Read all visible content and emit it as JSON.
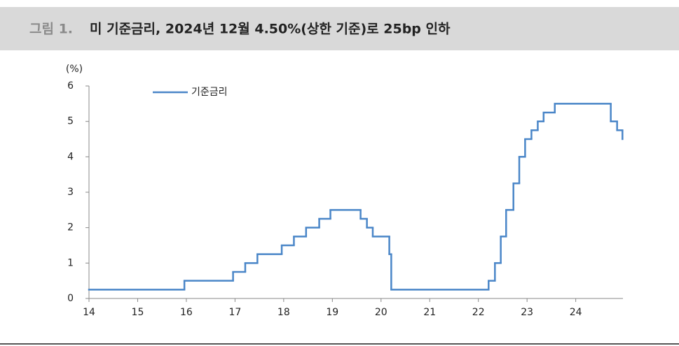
{
  "chart_data": {
    "type": "step",
    "figure_label": "그림 1.",
    "title": "미 기준금리, 2024년 12월 4.50%(상한 기준)로 25bp 인하",
    "y_label": "(%)",
    "series": [
      {
        "name": "기준금리",
        "color": "#4a86c8",
        "x": [
          14,
          15.96,
          16.96,
          17.21,
          17.46,
          17.96,
          18.21,
          18.46,
          18.73,
          18.96,
          19.58,
          19.71,
          19.83,
          20.17,
          20.21,
          22.21,
          22.34,
          22.46,
          22.57,
          22.72,
          22.84,
          22.96,
          23.09,
          23.22,
          23.34,
          23.57,
          24.72,
          24.85,
          24.96
        ],
        "values": [
          0.25,
          0.5,
          0.75,
          1.0,
          1.25,
          1.5,
          1.75,
          2.0,
          2.25,
          2.5,
          2.25,
          2.0,
          1.75,
          1.25,
          0.25,
          0.5,
          1.0,
          1.75,
          2.5,
          3.25,
          4.0,
          4.5,
          4.75,
          5.0,
          5.25,
          5.5,
          5.0,
          4.75,
          4.5
        ]
      }
    ],
    "xlim": [
      14,
      24.97
    ],
    "xticks": [
      14,
      15,
      16,
      17,
      18,
      19,
      20,
      21,
      22,
      23,
      24
    ],
    "ylim": [
      0,
      6
    ],
    "yticks": [
      0,
      1,
      2,
      3,
      4,
      5,
      6
    ],
    "legend": "top-left"
  }
}
